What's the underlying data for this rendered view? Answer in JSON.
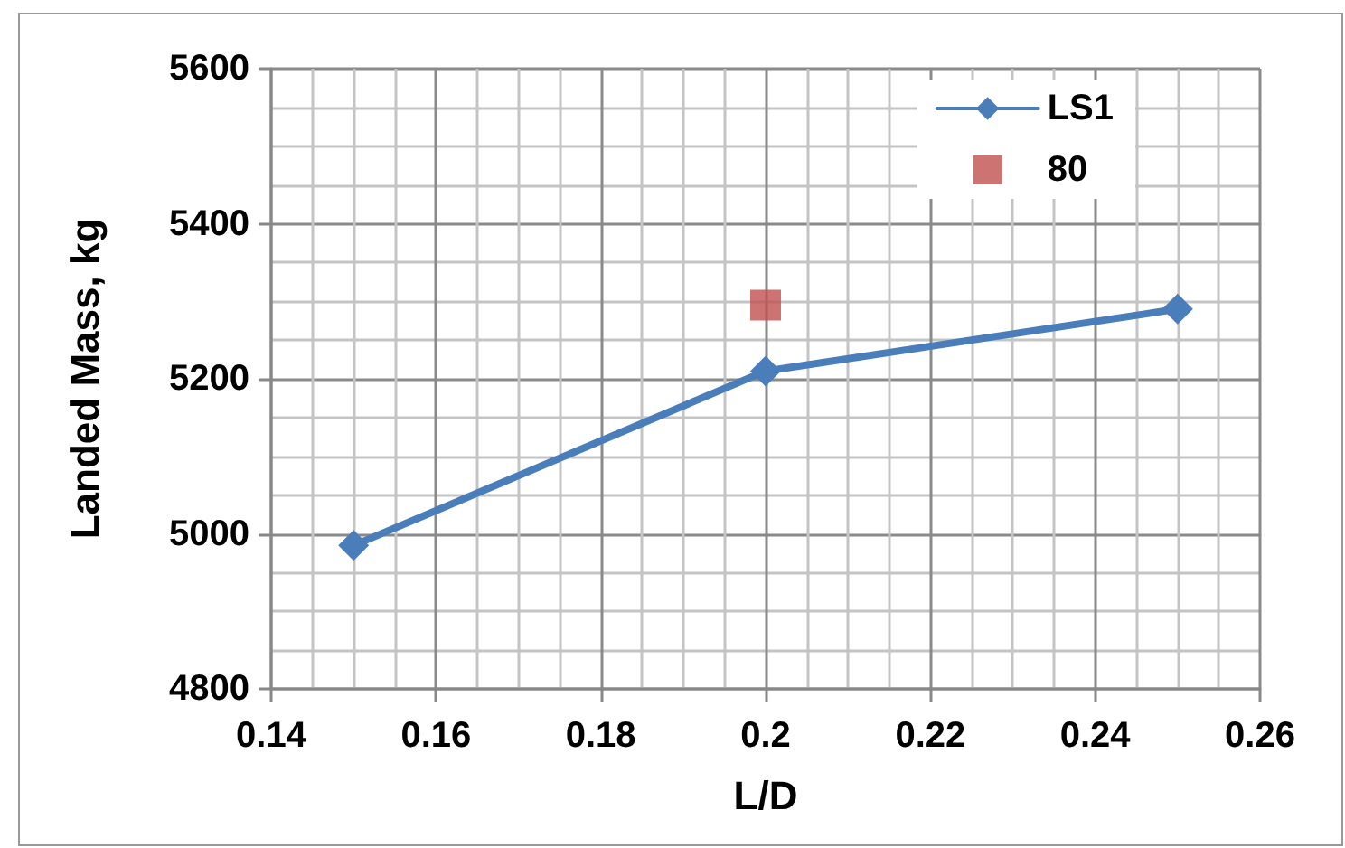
{
  "chart_data": {
    "type": "line",
    "xlabel": "L/D",
    "ylabel": "Landed Mass, kg",
    "xlim": [
      0.14,
      0.26
    ],
    "xticks": [
      0.14,
      0.16,
      0.18,
      0.2,
      0.22,
      0.24,
      0.26
    ],
    "ylim": [
      4800,
      5600
    ],
    "yticks": [
      4800,
      5000,
      5200,
      5400,
      5600
    ],
    "grid": true,
    "legend": "top right",
    "series": [
      {
        "name": "LS1",
        "color": "#4a7ebb",
        "marker": "diamond",
        "x": [
          0.15,
          0.2,
          0.25
        ],
        "values": [
          4985,
          5210,
          5290
        ]
      },
      {
        "name": "80",
        "type": "scatter",
        "color": "#c0504d",
        "marker": "square",
        "x": [
          0.2
        ],
        "values": [
          5295
        ]
      }
    ]
  }
}
